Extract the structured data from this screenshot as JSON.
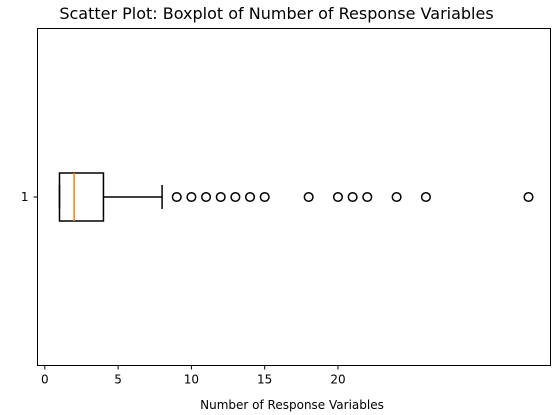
{
  "chart_data": {
    "type": "boxplot",
    "orientation": "horizontal",
    "title": "Scatter Plot: Boxplot of Number of Response Variables",
    "xlabel": "Number of Response Variables",
    "ylabel": "",
    "category": "1",
    "xlim": [
      -0.5,
      34.5
    ],
    "xticks": [
      0,
      5,
      10,
      15,
      20
    ],
    "box": {
      "whisker_low": 1,
      "q1": 1,
      "median": 2,
      "q3": 4,
      "whisker_high": 8
    },
    "outliers": [
      9,
      10,
      11,
      12,
      13,
      14,
      15,
      18,
      20,
      21,
      22,
      24,
      26,
      33
    ],
    "colors": {
      "box": "#000000",
      "median": "#ff7f0e",
      "outlier_edge": "#000000"
    }
  }
}
